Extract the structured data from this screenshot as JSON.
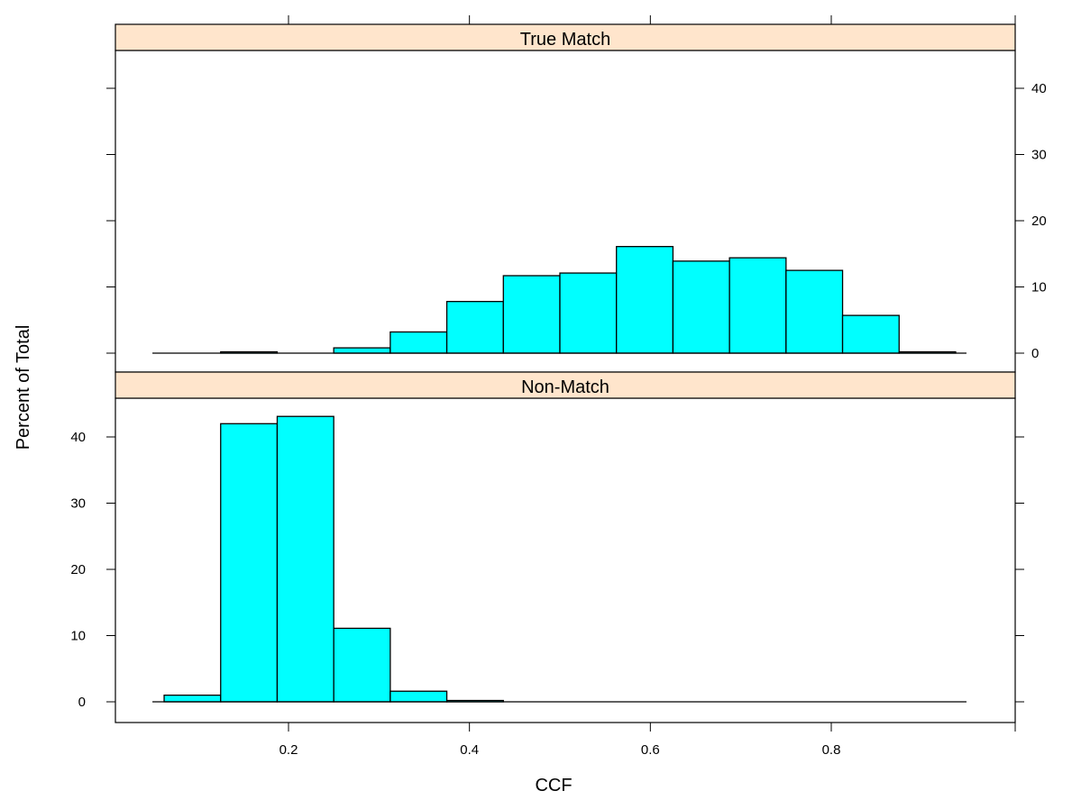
{
  "chart_data": {
    "type": "bar",
    "title": "",
    "xlabel": "CCF",
    "ylabel": "Percent of Total",
    "xlim": [
      0.0,
      1.0
    ],
    "ylim": [
      -3,
      45
    ],
    "x_ticks": [
      0.2,
      0.4,
      0.6,
      0.8
    ],
    "y_ticks": [
      0,
      10,
      20,
      30,
      40
    ],
    "bar_color": "#00ffff",
    "strip_color": "#ffe5cc",
    "panels": [
      {
        "name": "True Match",
        "bins": [
          {
            "x0": 0.0625,
            "x1": 0.125,
            "value": 0
          },
          {
            "x0": 0.125,
            "x1": 0.1875,
            "value": 0.2
          },
          {
            "x0": 0.1875,
            "x1": 0.25,
            "value": 0
          },
          {
            "x0": 0.25,
            "x1": 0.3125,
            "value": 0.8
          },
          {
            "x0": 0.3125,
            "x1": 0.375,
            "value": 3.2
          },
          {
            "x0": 0.375,
            "x1": 0.4375,
            "value": 7.8
          },
          {
            "x0": 0.4375,
            "x1": 0.5,
            "value": 11.7
          },
          {
            "x0": 0.5,
            "x1": 0.5625,
            "value": 12.1
          },
          {
            "x0": 0.5625,
            "x1": 0.625,
            "value": 16.1
          },
          {
            "x0": 0.625,
            "x1": 0.6875,
            "value": 13.9
          },
          {
            "x0": 0.6875,
            "x1": 0.75,
            "value": 14.4
          },
          {
            "x0": 0.75,
            "x1": 0.8125,
            "value": 12.5
          },
          {
            "x0": 0.8125,
            "x1": 0.875,
            "value": 5.7
          },
          {
            "x0": 0.875,
            "x1": 0.9375,
            "value": 0.2
          }
        ]
      },
      {
        "name": "Non-Match",
        "bins": [
          {
            "x0": 0.0625,
            "x1": 0.125,
            "value": 1.0
          },
          {
            "x0": 0.125,
            "x1": 0.1875,
            "value": 42.0
          },
          {
            "x0": 0.1875,
            "x1": 0.25,
            "value": 43.1
          },
          {
            "x0": 0.25,
            "x1": 0.3125,
            "value": 11.1
          },
          {
            "x0": 0.3125,
            "x1": 0.375,
            "value": 1.6
          },
          {
            "x0": 0.375,
            "x1": 0.4375,
            "value": 0.2
          },
          {
            "x0": 0.4375,
            "x1": 0.5,
            "value": 0
          },
          {
            "x0": 0.5,
            "x1": 0.5625,
            "value": 0
          },
          {
            "x0": 0.5625,
            "x1": 0.625,
            "value": 0
          },
          {
            "x0": 0.625,
            "x1": 0.6875,
            "value": 0
          },
          {
            "x0": 0.6875,
            "x1": 0.75,
            "value": 0
          },
          {
            "x0": 0.75,
            "x1": 0.8125,
            "value": 0
          },
          {
            "x0": 0.8125,
            "x1": 0.875,
            "value": 0
          },
          {
            "x0": 0.875,
            "x1": 0.9375,
            "value": 0
          }
        ]
      }
    ]
  }
}
